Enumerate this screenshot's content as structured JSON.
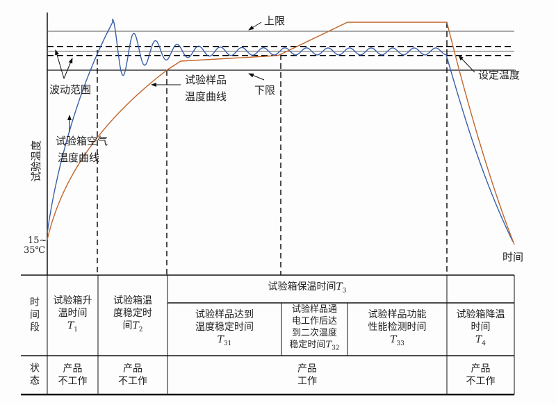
{
  "diagram": {
    "y_axis_label": "试验温度",
    "x_axis_label": "时间",
    "y_origin_label_1": "15~",
    "y_origin_label_2": "35℃",
    "upper_limit_label": "上限",
    "lower_limit_label": "下限",
    "setpoint_label": "设定温度",
    "fluctuation_label": "波动范围",
    "sample_curve_label_1": "试验样品",
    "sample_curve_label_2": "温度曲线",
    "chamber_curve_label_1": "试验箱空气",
    "chamber_curve_label_2": "温度曲线",
    "colors": {
      "chamber_curve": "#3a5fa8",
      "sample_curve": "#c0652a",
      "lines": "#111111"
    }
  },
  "table": {
    "row1_header": "时间段",
    "row2_header": "状态",
    "t1": {
      "text1": "试验箱升",
      "text2": "温时间",
      "sym": "T",
      "sub": "1"
    },
    "t2": {
      "text1": "试验箱温",
      "text2": "度稳定时",
      "text3": "间",
      "sym": "T",
      "sub": "2"
    },
    "t3": {
      "text": "试验箱保温时间",
      "sym": "T",
      "sub": "3"
    },
    "t31": {
      "text1": "试验样品达到",
      "text2": "温度稳定时间",
      "sym": "T",
      "sub": "31"
    },
    "t32": {
      "text1": "试验样品通",
      "text2": "电工作后达",
      "text3": "到二次温度",
      "text4": "稳定时间",
      "sym": "T",
      "sub": "32"
    },
    "t33": {
      "text1": "试验样品功能",
      "text2": "性能检测时间",
      "sym": "T",
      "sub": "33"
    },
    "t4": {
      "text1": "试验箱降温",
      "text2": "时间",
      "sym": "T",
      "sub": "4"
    },
    "status": {
      "s1_a": "产品",
      "s1_b": "不工作",
      "s2_a": "产品",
      "s2_b": "不工作",
      "s3_a": "产品",
      "s3_b": "工作",
      "s4_a": "产品",
      "s4_b": "不工作"
    }
  }
}
